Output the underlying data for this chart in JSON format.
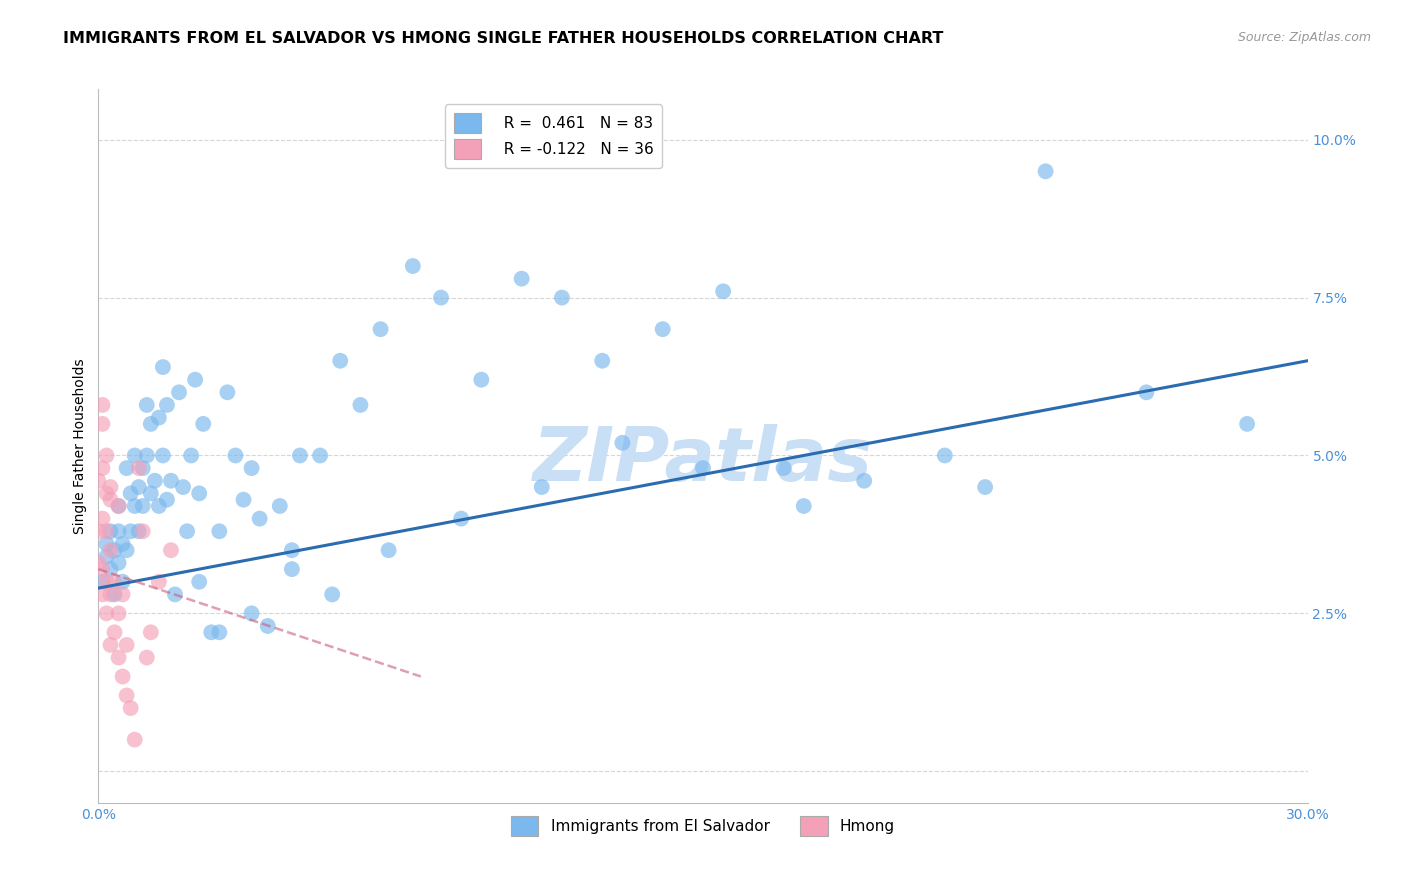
{
  "title": "IMMIGRANTS FROM EL SALVADOR VS HMONG SINGLE FATHER HOUSEHOLDS CORRELATION CHART",
  "source": "Source: ZipAtlas.com",
  "ylabel": "Single Father Households",
  "watermark": "ZIPatlas",
  "xlim": [
    0.0,
    0.3
  ],
  "ylim": [
    -0.005,
    0.108
  ],
  "xticks": [
    0.0,
    0.05,
    0.1,
    0.15,
    0.2,
    0.25,
    0.3
  ],
  "yticks": [
    0.0,
    0.025,
    0.05,
    0.075,
    0.1
  ],
  "background_color": "#ffffff",
  "grid_color": "#cccccc",
  "title_fontsize": 11.5,
  "axis_label_fontsize": 10,
  "tick_fontsize": 10,
  "legend_fontsize": 11,
  "watermark_fontsize": 54,
  "watermark_color": "#c8dff5",
  "source_fontsize": 9,
  "blue_R": 0.461,
  "blue_N": 83,
  "pink_R": -0.122,
  "pink_N": 36,
  "blue_color": "#7ab8ee",
  "blue_line_color": "#2b6cb0",
  "pink_color": "#f4a0b8",
  "pink_line_color": "#c8607a",
  "blue_name": "Immigrants from El Salvador",
  "pink_name": "Hmong",
  "blue_line_start_y": 0.029,
  "blue_line_end_y": 0.065,
  "pink_line_start_y": 0.032,
  "pink_line_end_y": 0.015,
  "blue_x": [
    0.001,
    0.002,
    0.002,
    0.003,
    0.003,
    0.004,
    0.004,
    0.005,
    0.005,
    0.005,
    0.006,
    0.006,
    0.007,
    0.007,
    0.008,
    0.008,
    0.009,
    0.009,
    0.01,
    0.01,
    0.011,
    0.011,
    0.012,
    0.012,
    0.013,
    0.013,
    0.014,
    0.015,
    0.015,
    0.016,
    0.016,
    0.017,
    0.017,
    0.018,
    0.019,
    0.02,
    0.021,
    0.022,
    0.023,
    0.024,
    0.025,
    0.026,
    0.028,
    0.03,
    0.032,
    0.034,
    0.036,
    0.038,
    0.04,
    0.042,
    0.045,
    0.048,
    0.05,
    0.055,
    0.06,
    0.065,
    0.07,
    0.078,
    0.085,
    0.095,
    0.105,
    0.115,
    0.125,
    0.14,
    0.155,
    0.17,
    0.19,
    0.21,
    0.235,
    0.26,
    0.285,
    0.22,
    0.175,
    0.15,
    0.13,
    0.11,
    0.09,
    0.072,
    0.058,
    0.048,
    0.038,
    0.03,
    0.025
  ],
  "blue_y": [
    0.03,
    0.034,
    0.036,
    0.038,
    0.032,
    0.028,
    0.035,
    0.033,
    0.038,
    0.042,
    0.036,
    0.03,
    0.035,
    0.048,
    0.038,
    0.044,
    0.042,
    0.05,
    0.038,
    0.045,
    0.048,
    0.042,
    0.05,
    0.058,
    0.044,
    0.055,
    0.046,
    0.042,
    0.056,
    0.05,
    0.064,
    0.043,
    0.058,
    0.046,
    0.028,
    0.06,
    0.045,
    0.038,
    0.05,
    0.062,
    0.03,
    0.055,
    0.022,
    0.022,
    0.06,
    0.05,
    0.043,
    0.048,
    0.04,
    0.023,
    0.042,
    0.035,
    0.05,
    0.05,
    0.065,
    0.058,
    0.07,
    0.08,
    0.075,
    0.062,
    0.078,
    0.075,
    0.065,
    0.07,
    0.076,
    0.048,
    0.046,
    0.05,
    0.095,
    0.06,
    0.055,
    0.045,
    0.042,
    0.048,
    0.052,
    0.045,
    0.04,
    0.035,
    0.028,
    0.032,
    0.025,
    0.038,
    0.044
  ],
  "pink_x": [
    0.0,
    0.0,
    0.0,
    0.001,
    0.001,
    0.001,
    0.001,
    0.001,
    0.002,
    0.002,
    0.002,
    0.002,
    0.003,
    0.003,
    0.003,
    0.003,
    0.004,
    0.004,
    0.005,
    0.005,
    0.005,
    0.006,
    0.006,
    0.007,
    0.007,
    0.008,
    0.009,
    0.01,
    0.011,
    0.012,
    0.013,
    0.015,
    0.018,
    0.001,
    0.002,
    0.003
  ],
  "pink_y": [
    0.033,
    0.038,
    0.046,
    0.028,
    0.032,
    0.04,
    0.048,
    0.055,
    0.025,
    0.03,
    0.038,
    0.044,
    0.02,
    0.028,
    0.035,
    0.045,
    0.022,
    0.03,
    0.018,
    0.025,
    0.042,
    0.015,
    0.028,
    0.012,
    0.02,
    0.01,
    0.005,
    0.048,
    0.038,
    0.018,
    0.022,
    0.03,
    0.035,
    0.058,
    0.05,
    0.043
  ]
}
